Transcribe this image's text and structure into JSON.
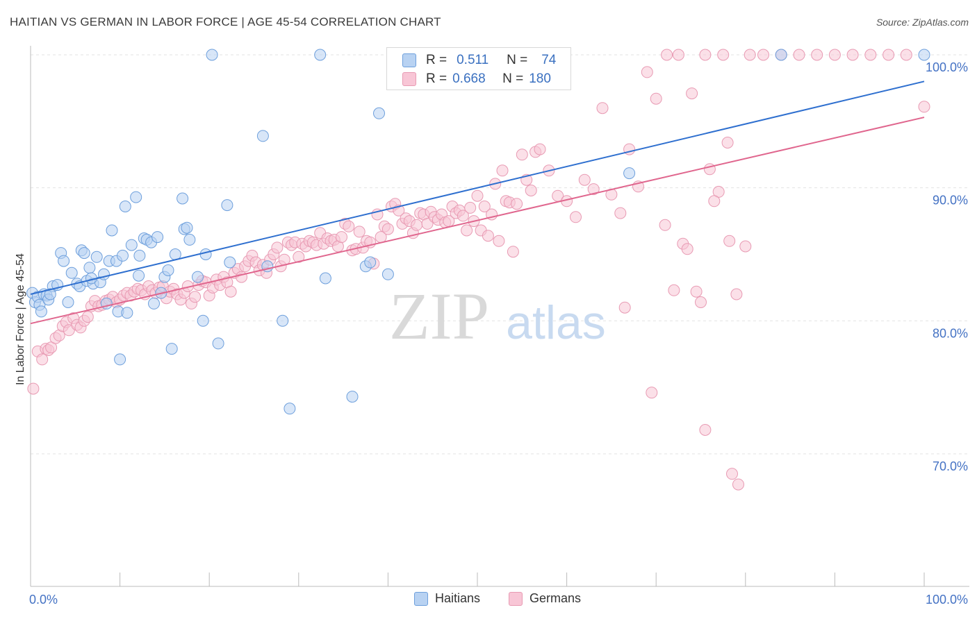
{
  "title": "HAITIAN VS GERMAN IN LABOR FORCE | AGE 45-54 CORRELATION CHART",
  "source": "Source: ZipAtlas.com",
  "watermark": {
    "zip": "ZIP",
    "atlas": "atlas"
  },
  "colors": {
    "blue_fill": "#b8d2f2",
    "blue_stroke": "#6d9fdc",
    "blue_line": "#2e6fcf",
    "pink_fill": "#f8c6d6",
    "pink_stroke": "#e89ab3",
    "pink_line": "#e0668e",
    "axis_text": "#4472c4"
  },
  "legend": {
    "rows": [
      {
        "r_label": "R =",
        "r_value": "0.511",
        "n_label": "N =",
        "n_value": "74"
      },
      {
        "r_label": "R =",
        "r_value": "0.668",
        "n_label": "N =",
        "n_value": "180"
      }
    ]
  },
  "bottom_legend": {
    "haitians": "Haitians",
    "germans": "Germans"
  },
  "chart_data": {
    "type": "scatter",
    "title": "HAITIAN VS GERMAN IN LABOR FORCE | AGE 45-54 CORRELATION CHART",
    "xlabel": "",
    "ylabel": "In Labor Force | Age 45-54",
    "x_tick_labels": [
      "0.0%",
      "100.0%"
    ],
    "y_tick_labels": [
      "70.0%",
      "80.0%",
      "90.0%",
      "100.0%"
    ],
    "xlim": [
      0,
      100
    ],
    "ylim": [
      60,
      102
    ],
    "grid": true,
    "legend_position": "top-center",
    "series": [
      {
        "name": "Haitians",
        "r": 0.511,
        "n": 74,
        "trend": {
          "x0": 0,
          "y0": 82.0,
          "x1": 100,
          "y1": 98.0
        },
        "points": [
          [
            0.2,
            82.1
          ],
          [
            0.5,
            81.4
          ],
          [
            0.8,
            81.8
          ],
          [
            1.0,
            81.2
          ],
          [
            1.2,
            80.7
          ],
          [
            1.5,
            82.0
          ],
          [
            1.8,
            81.9
          ],
          [
            2.0,
            81.6
          ],
          [
            2.5,
            82.6
          ],
          [
            3.0,
            82.7
          ],
          [
            3.4,
            85.1
          ],
          [
            3.7,
            84.5
          ],
          [
            4.2,
            81.4
          ],
          [
            4.6,
            83.6
          ],
          [
            5.2,
            82.8
          ],
          [
            5.5,
            82.6
          ],
          [
            5.7,
            85.3
          ],
          [
            6.0,
            85.1
          ],
          [
            6.3,
            83.0
          ],
          [
            6.6,
            84.0
          ],
          [
            7.0,
            82.8
          ],
          [
            7.4,
            84.8
          ],
          [
            7.8,
            82.9
          ],
          [
            8.2,
            83.5
          ],
          [
            8.5,
            81.3
          ],
          [
            8.8,
            84.5
          ],
          [
            9.1,
            86.8
          ],
          [
            9.6,
            84.5
          ],
          [
            9.8,
            80.7
          ],
          [
            10.0,
            77.1
          ],
          [
            10.3,
            84.9
          ],
          [
            10.6,
            88.6
          ],
          [
            10.8,
            80.6
          ],
          [
            11.3,
            85.7
          ],
          [
            11.8,
            89.3
          ],
          [
            12.1,
            83.4
          ],
          [
            12.2,
            84.9
          ],
          [
            12.7,
            86.2
          ],
          [
            13.0,
            86.1
          ],
          [
            13.5,
            85.9
          ],
          [
            13.8,
            81.3
          ],
          [
            14.2,
            86.3
          ],
          [
            14.6,
            82.1
          ],
          [
            15.0,
            83.3
          ],
          [
            15.4,
            83.8
          ],
          [
            15.8,
            77.9
          ],
          [
            16.2,
            85.0
          ],
          [
            17.0,
            89.2
          ],
          [
            17.2,
            86.9
          ],
          [
            17.5,
            87.0
          ],
          [
            17.8,
            86.1
          ],
          [
            18.7,
            83.3
          ],
          [
            19.3,
            80.0
          ],
          [
            19.6,
            85.0
          ],
          [
            20.3,
            100.0
          ],
          [
            21.0,
            78.3
          ],
          [
            22.0,
            88.7
          ],
          [
            22.3,
            84.4
          ],
          [
            26.0,
            93.9
          ],
          [
            26.5,
            84.1
          ],
          [
            28.2,
            80.0
          ],
          [
            29.0,
            73.4
          ],
          [
            32.4,
            100.0
          ],
          [
            33.0,
            83.2
          ],
          [
            36.0,
            74.3
          ],
          [
            37.5,
            84.1
          ],
          [
            38.0,
            84.4
          ],
          [
            39.0,
            95.6
          ],
          [
            40.0,
            83.5
          ],
          [
            67.0,
            91.1
          ],
          [
            84.0,
            100.0
          ],
          [
            100.0,
            100.0
          ],
          [
            2.2,
            82.0
          ],
          [
            6.8,
            83.2
          ]
        ]
      },
      {
        "name": "Germans",
        "r": 0.668,
        "n": 180,
        "trend": {
          "x0": 0,
          "y0": 79.8,
          "x1": 100,
          "y1": 95.3
        },
        "points": [
          [
            0.3,
            74.9
          ],
          [
            0.8,
            77.7
          ],
          [
            1.3,
            77.1
          ],
          [
            1.7,
            77.9
          ],
          [
            2.0,
            77.8
          ],
          [
            2.3,
            78.0
          ],
          [
            2.8,
            78.7
          ],
          [
            3.2,
            78.9
          ],
          [
            3.6,
            79.6
          ],
          [
            4.0,
            79.9
          ],
          [
            4.3,
            79.3
          ],
          [
            4.8,
            80.2
          ],
          [
            5.2,
            79.7
          ],
          [
            5.6,
            79.5
          ],
          [
            6.0,
            80.0
          ],
          [
            6.4,
            80.3
          ],
          [
            6.8,
            81.1
          ],
          [
            7.2,
            81.5
          ],
          [
            7.6,
            81.1
          ],
          [
            8.0,
            81.2
          ],
          [
            8.4,
            81.5
          ],
          [
            8.8,
            81.6
          ],
          [
            9.2,
            81.8
          ],
          [
            9.6,
            81.4
          ],
          [
            10.0,
            81.6
          ],
          [
            10.4,
            81.9
          ],
          [
            10.8,
            82.1
          ],
          [
            11.2,
            81.9
          ],
          [
            11.6,
            82.2
          ],
          [
            12.0,
            82.4
          ],
          [
            12.4,
            82.3
          ],
          [
            12.8,
            82.0
          ],
          [
            13.2,
            82.6
          ],
          [
            13.6,
            82.3
          ],
          [
            14.0,
            82.1
          ],
          [
            14.4,
            82.5
          ],
          [
            14.8,
            82.6
          ],
          [
            15.2,
            81.7
          ],
          [
            15.6,
            82.2
          ],
          [
            16.0,
            82.4
          ],
          [
            16.4,
            82.0
          ],
          [
            16.8,
            81.6
          ],
          [
            17.2,
            82.1
          ],
          [
            17.6,
            82.6
          ],
          [
            18.0,
            81.3
          ],
          [
            18.4,
            81.8
          ],
          [
            18.8,
            82.7
          ],
          [
            19.2,
            83.0
          ],
          [
            19.6,
            82.9
          ],
          [
            20.0,
            81.9
          ],
          [
            20.4,
            82.5
          ],
          [
            20.8,
            83.1
          ],
          [
            21.2,
            82.7
          ],
          [
            21.6,
            83.3
          ],
          [
            22.0,
            82.9
          ],
          [
            22.4,
            82.2
          ],
          [
            22.8,
            83.6
          ],
          [
            23.2,
            83.9
          ],
          [
            23.6,
            83.3
          ],
          [
            24.0,
            84.1
          ],
          [
            24.4,
            84.5
          ],
          [
            24.8,
            84.9
          ],
          [
            25.2,
            84.4
          ],
          [
            25.6,
            83.8
          ],
          [
            26.0,
            84.2
          ],
          [
            26.4,
            83.6
          ],
          [
            26.8,
            84.6
          ],
          [
            27.2,
            85.0
          ],
          [
            27.6,
            85.5
          ],
          [
            28.0,
            84.1
          ],
          [
            28.4,
            84.6
          ],
          [
            28.8,
            85.9
          ],
          [
            29.2,
            85.7
          ],
          [
            29.6,
            85.9
          ],
          [
            30.0,
            84.8
          ],
          [
            30.4,
            85.8
          ],
          [
            30.8,
            85.6
          ],
          [
            31.2,
            86.0
          ],
          [
            31.6,
            85.9
          ],
          [
            32.0,
            85.7
          ],
          [
            32.4,
            86.6
          ],
          [
            32.8,
            85.8
          ],
          [
            33.2,
            86.2
          ],
          [
            33.6,
            86.0
          ],
          [
            34.0,
            86.1
          ],
          [
            34.4,
            85.6
          ],
          [
            34.8,
            86.3
          ],
          [
            35.2,
            87.3
          ],
          [
            35.6,
            87.1
          ],
          [
            36.0,
            85.3
          ],
          [
            36.4,
            85.4
          ],
          [
            36.8,
            86.7
          ],
          [
            37.2,
            85.5
          ],
          [
            37.6,
            86.0
          ],
          [
            38.0,
            85.9
          ],
          [
            38.4,
            84.3
          ],
          [
            38.8,
            88.0
          ],
          [
            39.2,
            86.3
          ],
          [
            39.6,
            87.1
          ],
          [
            40.0,
            86.9
          ],
          [
            40.4,
            88.6
          ],
          [
            40.8,
            88.8
          ],
          [
            41.2,
            88.3
          ],
          [
            41.6,
            87.3
          ],
          [
            42.0,
            87.7
          ],
          [
            42.4,
            87.5
          ],
          [
            42.8,
            86.6
          ],
          [
            43.2,
            87.2
          ],
          [
            43.6,
            88.1
          ],
          [
            44.0,
            88.0
          ],
          [
            44.4,
            87.3
          ],
          [
            44.8,
            88.2
          ],
          [
            45.2,
            87.8
          ],
          [
            45.6,
            87.6
          ],
          [
            46.0,
            88.0
          ],
          [
            46.4,
            87.4
          ],
          [
            46.8,
            87.5
          ],
          [
            47.2,
            88.6
          ],
          [
            47.6,
            88.1
          ],
          [
            48.0,
            88.3
          ],
          [
            48.4,
            87.9
          ],
          [
            48.8,
            86.8
          ],
          [
            49.2,
            88.5
          ],
          [
            49.6,
            87.5
          ],
          [
            50.0,
            89.4
          ],
          [
            50.4,
            86.8
          ],
          [
            50.8,
            88.6
          ],
          [
            51.2,
            86.4
          ],
          [
            51.6,
            88.0
          ],
          [
            52.0,
            90.3
          ],
          [
            52.4,
            86.0
          ],
          [
            52.8,
            91.3
          ],
          [
            53.2,
            89.0
          ],
          [
            53.6,
            88.9
          ],
          [
            54.0,
            85.2
          ],
          [
            54.4,
            88.8
          ],
          [
            55.0,
            92.5
          ],
          [
            55.5,
            90.6
          ],
          [
            56.0,
            89.8
          ],
          [
            56.5,
            92.7
          ],
          [
            57.0,
            92.9
          ],
          [
            58.0,
            91.3
          ],
          [
            59.0,
            89.4
          ],
          [
            60.0,
            89.0
          ],
          [
            61.0,
            87.8
          ],
          [
            62.0,
            90.6
          ],
          [
            63.0,
            89.9
          ],
          [
            64.0,
            96.0
          ],
          [
            65.0,
            89.5
          ],
          [
            66.0,
            88.1
          ],
          [
            67.0,
            92.9
          ],
          [
            68.0,
            90.1
          ],
          [
            69.0,
            98.7
          ],
          [
            70.0,
            96.7
          ],
          [
            71.0,
            87.2
          ],
          [
            72.0,
            82.3
          ],
          [
            73.0,
            85.8
          ],
          [
            74.0,
            97.1
          ],
          [
            75.0,
            81.4
          ],
          [
            76.0,
            91.4
          ],
          [
            77.0,
            89.7
          ],
          [
            78.0,
            93.4
          ],
          [
            79.0,
            82.0
          ],
          [
            80.0,
            85.6
          ],
          [
            66.5,
            81.0
          ],
          [
            69.5,
            74.6
          ],
          [
            75.5,
            71.8
          ],
          [
            78.5,
            68.5
          ],
          [
            79.2,
            67.7
          ],
          [
            73.5,
            85.4
          ],
          [
            74.5,
            82.2
          ],
          [
            76.5,
            89.0
          ],
          [
            78.2,
            86.0
          ],
          [
            80.5,
            100.0
          ],
          [
            82.0,
            100.0
          ],
          [
            84.0,
            100.0
          ],
          [
            86.0,
            100.0
          ],
          [
            88.0,
            100.0
          ],
          [
            90.0,
            100.0
          ],
          [
            92.0,
            100.0
          ],
          [
            94.0,
            100.0
          ],
          [
            96.0,
            100.0
          ],
          [
            98.0,
            100.0
          ],
          [
            100.0,
            96.1
          ],
          [
            72.5,
            100.0
          ],
          [
            75.5,
            100.0
          ],
          [
            77.5,
            100.0
          ],
          [
            71.2,
            100.0
          ]
        ]
      }
    ]
  }
}
